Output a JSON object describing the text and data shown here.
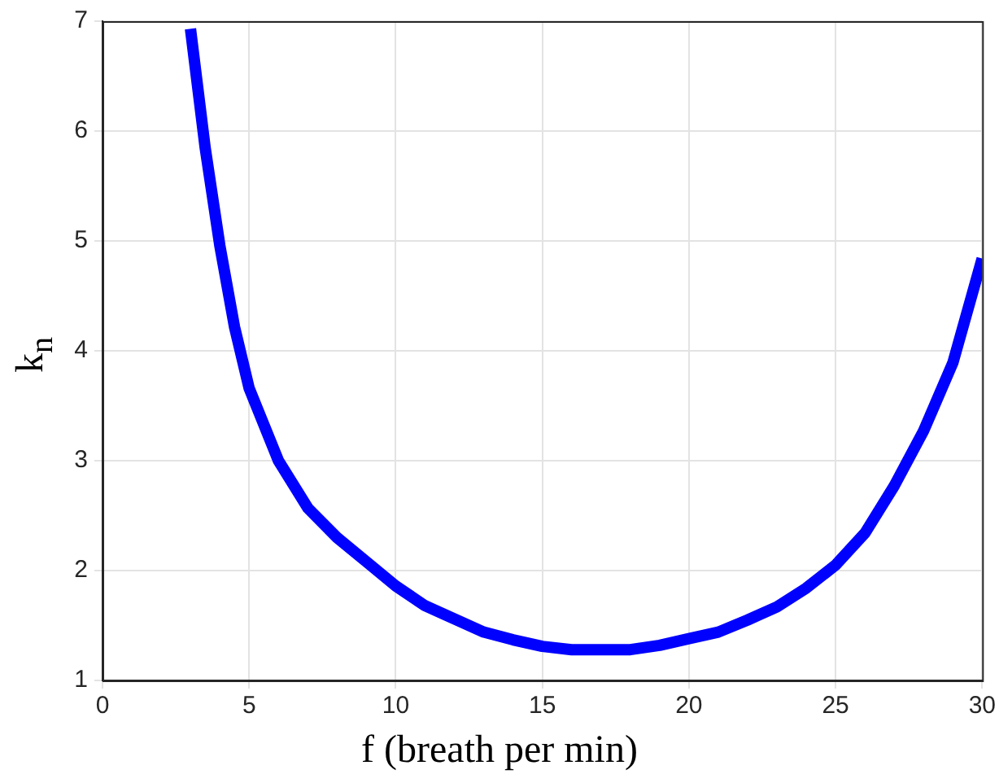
{
  "chart_data": {
    "type": "line",
    "xlabel": "f (breath per min)",
    "ylabel": "k$_{n}$",
    "x": [
      3,
      3.5,
      4,
      4.5,
      5,
      6,
      7,
      8,
      9,
      10,
      11,
      12,
      13,
      14,
      15,
      16,
      17,
      18,
      19,
      20,
      21,
      22,
      23,
      24,
      25,
      26,
      27,
      28,
      29,
      30
    ],
    "series": [
      {
        "color": "#0000ff",
        "values": [
          6.93,
          5.85,
          4.96,
          4.22,
          3.66,
          3.0,
          2.57,
          2.3,
          2.08,
          1.86,
          1.68,
          1.56,
          1.44,
          1.37,
          1.31,
          1.28,
          1.28,
          1.28,
          1.32,
          1.38,
          1.44,
          1.55,
          1.67,
          1.84,
          2.05,
          2.34,
          2.77,
          3.27,
          3.89,
          4.84
        ]
      }
    ],
    "xlim": [
      0,
      30
    ],
    "xticks": [
      0,
      5,
      10,
      15,
      20,
      25,
      30
    ],
    "ylim": [
      1,
      7
    ],
    "yticks": [
      1,
      2,
      3,
      4,
      5,
      6,
      7
    ],
    "grid": true,
    "legend": false,
    "marker": "none",
    "line_style": "solid"
  }
}
